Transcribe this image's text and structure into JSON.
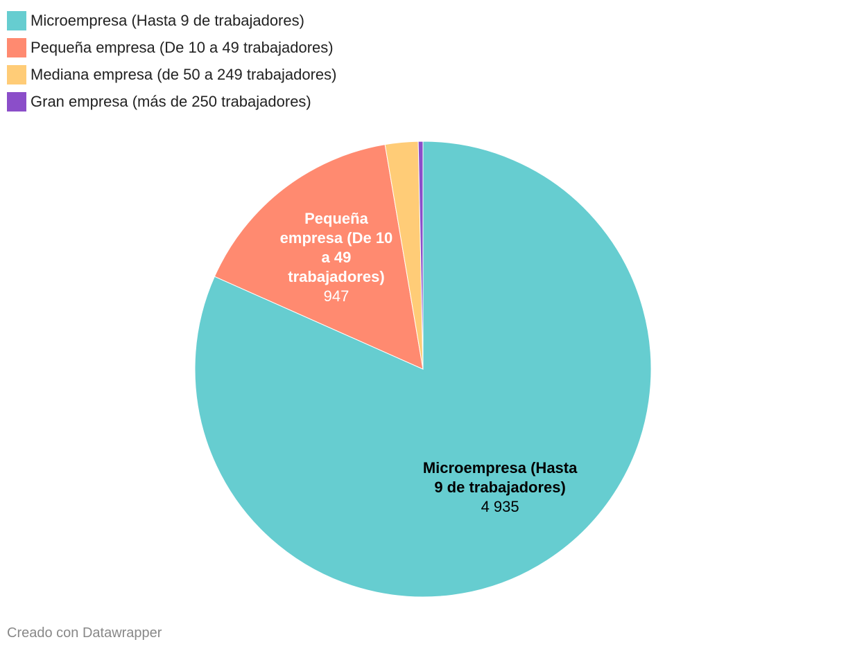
{
  "chart_data": {
    "type": "pie",
    "categories": [
      "Microempresa (Hasta 9 de trabajadores)",
      "Pequeña empresa (De 10 a 49 trabajadores)",
      "Mediana empresa (de 50 a 249 trabajadores)",
      "Gran empresa (más de 250 trabajadores)"
    ],
    "values": [
      4935,
      947,
      141,
      20
    ],
    "value_labels": [
      "4 935",
      "947",
      null,
      null
    ],
    "colors": [
      "#66cdd0",
      "#ff8a70",
      "#ffcc77",
      "#8b4ec9"
    ],
    "footer": "Creado con Datawrapper"
  }
}
